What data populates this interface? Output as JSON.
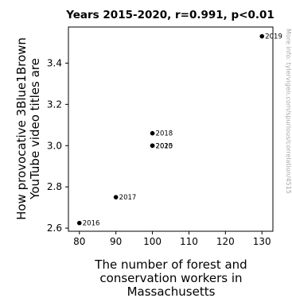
{
  "chart_data": {
    "type": "scatter",
    "title": "Years 2015-2020, r=0.991, p<0.01",
    "xlabel": [
      "The number of forest and",
      "conservation workers in",
      "Massachusetts"
    ],
    "ylabel": [
      "How provocative 3Blue1Brown",
      "YouTube video titles are"
    ],
    "xlim": [
      77,
      133
    ],
    "ylim": [
      2.585,
      3.575
    ],
    "xticks": [
      "80",
      "90",
      "100",
      "110",
      "120",
      "130"
    ],
    "yticks": [
      "2.6",
      "2.8",
      "3.0",
      "3.2",
      "3.4"
    ],
    "grid": false,
    "points": [
      {
        "x": 80,
        "y": 2.625,
        "label": "2016"
      },
      {
        "x": 90,
        "y": 2.75,
        "label": "2017"
      },
      {
        "x": 100,
        "y": 3.06,
        "label": "2018"
      },
      {
        "x": 130,
        "y": 3.53,
        "label": "2019"
      },
      {
        "x": 100,
        "y": 3.0,
        "label": "2020"
      },
      {
        "x": 100,
        "y": 3.0,
        "label": "2015"
      }
    ],
    "point_color": "#000000"
  },
  "watermark": "More info: tylervigen.com/spurious/correlation/4515"
}
